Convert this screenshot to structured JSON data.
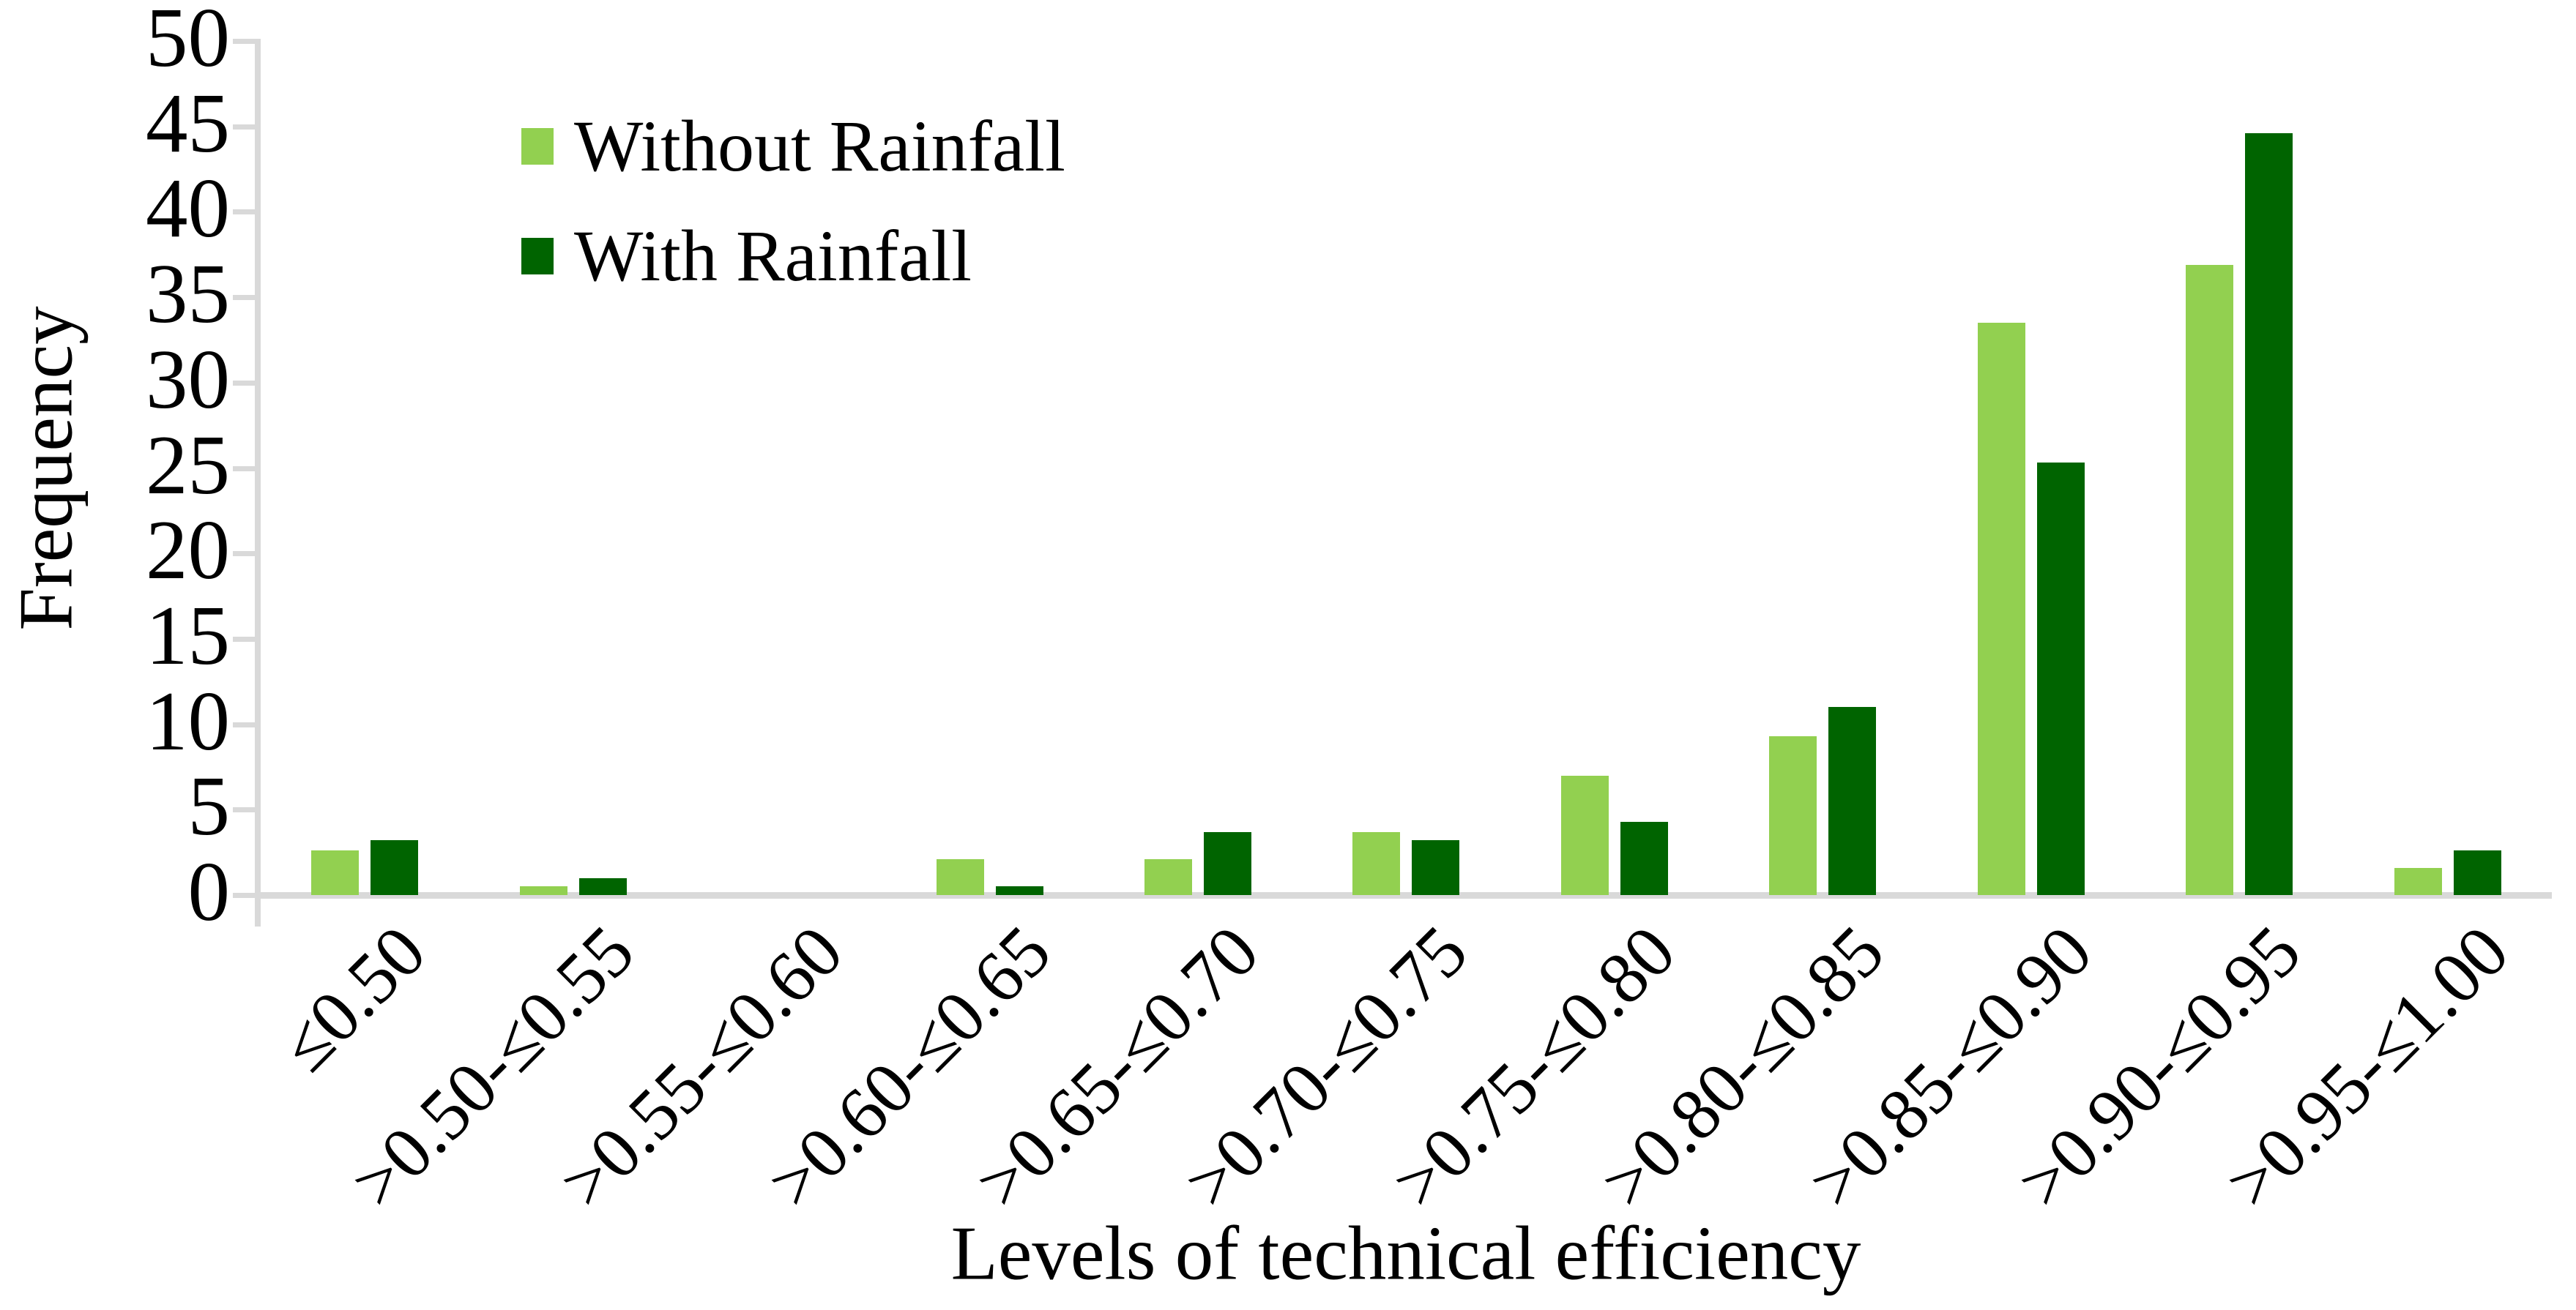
{
  "chart_data": {
    "type": "bar",
    "title": "",
    "xlabel": "Levels of technical efficiency",
    "ylabel": "Frequency",
    "categories": [
      "≤0.50",
      ">0.50-≤0.55",
      ">0.55-≤0.60",
      ">0.60-≤0.65",
      ">0.65-≤0.70",
      ">0.70-≤0.75",
      ">0.75-≤0.80",
      ">0.80-≤0.85",
      ">0.85-≤0.90",
      ">0.90-≤0.95",
      ">0.95-≤1.00"
    ],
    "series": [
      {
        "name": "Without Rainfall",
        "color": "#92D050",
        "values": [
          2.6,
          0.5,
          0,
          2.1,
          2.1,
          3.7,
          7.0,
          9.3,
          33.5,
          36.9,
          1.6
        ]
      },
      {
        "name": "With Rainfall",
        "color": "#006400",
        "values": [
          3.2,
          1.0,
          0,
          0.5,
          3.7,
          3.2,
          4.3,
          11.0,
          25.3,
          44.6,
          2.6
        ]
      }
    ],
    "ylim": [
      0,
      50
    ],
    "y_ticks": [
      0,
      5,
      10,
      15,
      20,
      25,
      30,
      35,
      40,
      45,
      50
    ],
    "grid": "off",
    "legend_position": "inside-top-left",
    "axis_color": "#d9d9d9"
  }
}
